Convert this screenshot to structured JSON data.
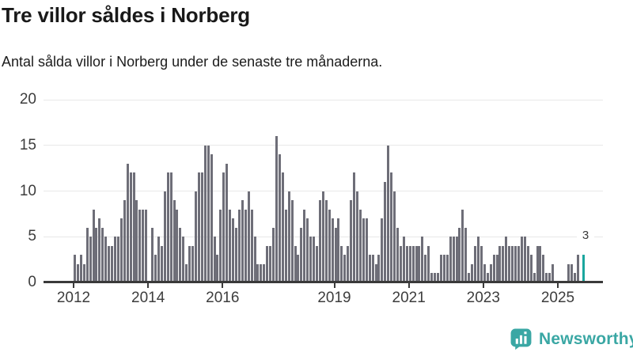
{
  "header": {
    "title": "Tre villor såldes i Norberg",
    "subtitle": "Antal sålda villor i Norberg under de senaste tre månaderna."
  },
  "chart_data": {
    "type": "bar",
    "title": "Tre villor såldes i Norberg",
    "xlabel": "",
    "ylabel": "",
    "unit": "sålda villor (rullande tre månader)",
    "x_start": "2012-01",
    "x_end": "2025-09",
    "x_interval": "month",
    "ylim": [
      0,
      20
    ],
    "y_ticks": [
      0,
      5,
      10,
      15,
      20
    ],
    "grid": "horizontal",
    "x_ticks": [
      {
        "label": "2012",
        "month_index": 0
      },
      {
        "label": "2014",
        "month_index": 24
      },
      {
        "label": "2016",
        "month_index": 48
      },
      {
        "label": "2019",
        "month_index": 84
      },
      {
        "label": "2021",
        "month_index": 108
      },
      {
        "label": "2023",
        "month_index": 132
      },
      {
        "label": "2025",
        "month_index": 156
      }
    ],
    "monthly_values": [
      3,
      2,
      3,
      2,
      6,
      5,
      8,
      6,
      7,
      6,
      5,
      4,
      4,
      5,
      5,
      7,
      9,
      13,
      12,
      12,
      9,
      8,
      8,
      8,
      0,
      6,
      3,
      5,
      4,
      10,
      12,
      12,
      9,
      8,
      6,
      5,
      2,
      4,
      4,
      10,
      12,
      12,
      15,
      15,
      14,
      5,
      3,
      8,
      12,
      13,
      8,
      7,
      6,
      8,
      9,
      8,
      10,
      8,
      5,
      2,
      2,
      2,
      4,
      4,
      6,
      16,
      14,
      12,
      8,
      10,
      9,
      4,
      3,
      6,
      8,
      7,
      5,
      5,
      4,
      9,
      10,
      9,
      8,
      7,
      6,
      7,
      4,
      3,
      4,
      9,
      12,
      10,
      8,
      7,
      7,
      3,
      3,
      2,
      3,
      7,
      11,
      15,
      12,
      10,
      6,
      4,
      5,
      4,
      4,
      4,
      4,
      4,
      5,
      3,
      4,
      1,
      1,
      1,
      3,
      3,
      3,
      5,
      5,
      5,
      6,
      8,
      6,
      1,
      2,
      4,
      5,
      4,
      2,
      1,
      2,
      3,
      3,
      4,
      4,
      5,
      4,
      4,
      4,
      4,
      5,
      5,
      4,
      3,
      1,
      4,
      4,
      3,
      1,
      1,
      2,
      0,
      0,
      0,
      0,
      2,
      2,
      1,
      3,
      0,
      3
    ],
    "bar_color": "#6e6e78",
    "highlight": {
      "month_index": 164,
      "value": 3,
      "label": "3",
      "color": "#1aa69e"
    }
  },
  "branding": {
    "logo_text": "Newsworthy",
    "logo_color": "#3aa7a4",
    "logo_icon": "bar-chart-speech-bubble-icon"
  },
  "colors": {
    "background": "#ffffff",
    "bar": "#6e6e78",
    "highlight": "#1aa69e",
    "gridline": "#e8e8e8",
    "axis": "#3a3a3a",
    "text": "#191919"
  }
}
